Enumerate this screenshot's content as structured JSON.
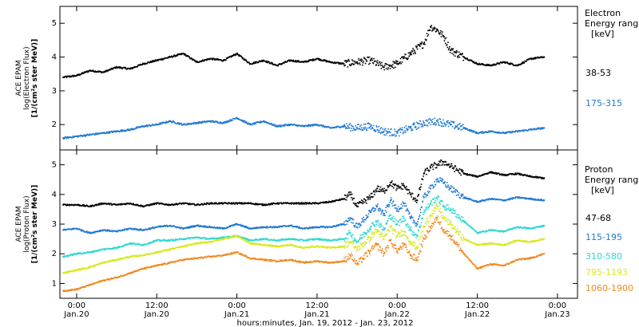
{
  "xlabel": "hours:minutes, Jan. 19, 2012 - Jan. 23, 2012",
  "x_ticks": [
    {
      "hours": 0,
      "time": "0:00",
      "date": "Jan.20"
    },
    {
      "hours": 12,
      "time": "12:00",
      "date": "Jan.20"
    },
    {
      "hours": 24,
      "time": "0:00",
      "date": "Jan.21"
    },
    {
      "hours": 36,
      "time": "12:00",
      "date": "Jan.21"
    },
    {
      "hours": 48,
      "time": "0:00",
      "date": "Jan.22"
    },
    {
      "hours": 60,
      "time": "12:00",
      "date": "Jan.22"
    },
    {
      "hours": 72,
      "time": "0:00",
      "date": "Jan.23"
    }
  ],
  "chart_data": [
    {
      "type": "scatter",
      "ylabel_lines": [
        "ACE EPAM",
        "log(Electron Flux)",
        "[1/(cm²s ster MeV)]"
      ],
      "legend_title": [
        "Electron",
        "Energy ranges",
        "[keV]"
      ],
      "xlim": [
        -2.5,
        75
      ],
      "ylim": [
        1.25,
        5.5
      ],
      "yticks": [
        2,
        3,
        4,
        5
      ],
      "series": [
        {
          "name": "38-53",
          "color": "#000000",
          "x": [
            -2,
            0,
            2,
            4,
            6,
            8,
            10,
            12,
            14,
            16,
            18,
            20,
            22,
            24,
            26,
            28,
            30,
            32,
            34,
            36,
            38,
            40,
            42,
            44,
            46,
            48,
            50,
            52,
            53,
            54,
            55,
            56,
            58,
            60,
            62,
            64,
            66,
            68,
            70
          ],
          "y": [
            3.4,
            3.45,
            3.6,
            3.55,
            3.7,
            3.65,
            3.8,
            3.9,
            4.0,
            4.1,
            3.85,
            3.95,
            3.9,
            4.1,
            3.8,
            3.9,
            3.75,
            3.9,
            3.85,
            3.95,
            3.85,
            3.8,
            3.85,
            3.9,
            3.7,
            3.8,
            4.1,
            4.4,
            4.9,
            4.8,
            4.6,
            4.2,
            4.0,
            3.8,
            3.75,
            3.85,
            3.75,
            3.95,
            4.0
          ]
        },
        {
          "name": "175-315",
          "color": "#1f78d1",
          "x": [
            -2,
            0,
            2,
            4,
            6,
            8,
            10,
            12,
            14,
            16,
            18,
            20,
            22,
            24,
            26,
            28,
            30,
            32,
            34,
            36,
            38,
            40,
            42,
            44,
            46,
            48,
            50,
            52,
            54,
            56,
            58,
            60,
            62,
            64,
            66,
            68,
            70
          ],
          "y": [
            1.6,
            1.65,
            1.7,
            1.75,
            1.8,
            1.85,
            1.95,
            2.0,
            2.1,
            2.0,
            2.05,
            2.1,
            2.05,
            2.2,
            2.0,
            2.1,
            1.95,
            2.0,
            1.95,
            2.0,
            1.9,
            1.95,
            1.9,
            1.95,
            1.8,
            1.75,
            1.9,
            2.05,
            2.1,
            2.0,
            1.9,
            1.75,
            1.8,
            1.75,
            1.8,
            1.85,
            1.9
          ]
        }
      ]
    },
    {
      "type": "scatter",
      "ylabel_lines": [
        "ACE EPAM",
        "log(Proton Flux)",
        "[1/(cm²s ster MeV)]"
      ],
      "legend_title": [
        "Proton",
        "Energy ranges",
        "[keV]"
      ],
      "xlim": [
        -2.5,
        75
      ],
      "ylim": [
        0.5,
        5.5
      ],
      "yticks": [
        1,
        2,
        3,
        4,
        5
      ],
      "series": [
        {
          "name": "47-68",
          "color": "#000000",
          "x": [
            -2,
            0,
            2,
            4,
            6,
            8,
            10,
            12,
            14,
            16,
            18,
            20,
            22,
            24,
            26,
            28,
            30,
            32,
            34,
            36,
            38,
            40,
            41,
            42,
            44,
            45,
            46,
            47,
            48,
            49,
            50,
            51,
            52,
            53,
            54,
            55,
            56,
            58,
            60,
            62,
            64,
            66,
            68,
            70
          ],
          "y": [
            3.65,
            3.65,
            3.6,
            3.7,
            3.65,
            3.7,
            3.6,
            3.7,
            3.65,
            3.7,
            3.65,
            3.7,
            3.7,
            3.7,
            3.7,
            3.65,
            3.7,
            3.7,
            3.7,
            3.7,
            3.75,
            3.85,
            4.0,
            3.6,
            3.9,
            4.2,
            4.1,
            4.4,
            4.2,
            4.3,
            4.0,
            3.8,
            4.7,
            4.9,
            5.0,
            5.1,
            4.95,
            4.7,
            4.6,
            4.75,
            4.65,
            4.7,
            4.6,
            4.55
          ]
        },
        {
          "name": "115-195",
          "color": "#1f78d1",
          "x": [
            -2,
            0,
            2,
            4,
            6,
            8,
            10,
            12,
            14,
            16,
            18,
            20,
            22,
            24,
            26,
            28,
            30,
            32,
            34,
            36,
            38,
            40,
            41,
            42,
            44,
            45,
            46,
            47,
            48,
            49,
            50,
            51,
            52,
            53,
            54,
            55,
            56,
            58,
            60,
            62,
            64,
            66,
            68,
            70
          ],
          "y": [
            2.8,
            2.85,
            2.7,
            2.8,
            2.75,
            2.85,
            2.8,
            2.9,
            2.95,
            2.85,
            2.95,
            2.9,
            2.85,
            3.0,
            2.85,
            2.9,
            2.9,
            2.95,
            2.85,
            2.9,
            2.9,
            3.0,
            3.2,
            2.9,
            3.4,
            3.6,
            3.3,
            3.8,
            3.5,
            3.7,
            3.2,
            3.0,
            3.9,
            4.2,
            4.5,
            4.4,
            4.2,
            3.9,
            3.75,
            3.85,
            3.8,
            3.9,
            3.85,
            3.8
          ]
        },
        {
          "name": "310-580",
          "color": "#2ad9d0",
          "x": [
            -2,
            0,
            2,
            4,
            6,
            8,
            10,
            12,
            14,
            16,
            18,
            20,
            22,
            24,
            26,
            28,
            30,
            32,
            34,
            36,
            38,
            40,
            41,
            42,
            44,
            45,
            46,
            47,
            48,
            49,
            50,
            51,
            52,
            53,
            54,
            55,
            56,
            58,
            60,
            62,
            64,
            66,
            68,
            70
          ],
          "y": [
            1.9,
            2.0,
            2.05,
            2.15,
            2.2,
            2.35,
            2.3,
            2.45,
            2.45,
            2.5,
            2.55,
            2.5,
            2.55,
            2.6,
            2.45,
            2.5,
            2.45,
            2.5,
            2.45,
            2.5,
            2.45,
            2.5,
            2.7,
            2.4,
            2.9,
            3.1,
            2.8,
            3.3,
            3.0,
            3.2,
            2.8,
            2.6,
            3.4,
            3.7,
            3.9,
            3.6,
            3.5,
            3.1,
            2.7,
            2.8,
            2.75,
            2.9,
            2.85,
            2.95
          ]
        },
        {
          "name": "795-1193",
          "color": "#d8e81a",
          "x": [
            -2,
            0,
            2,
            4,
            6,
            8,
            10,
            12,
            14,
            16,
            18,
            20,
            22,
            24,
            26,
            28,
            30,
            32,
            34,
            36,
            38,
            40,
            41,
            42,
            44,
            45,
            46,
            47,
            48,
            49,
            50,
            51,
            52,
            53,
            54,
            55,
            56,
            58,
            60,
            62,
            64,
            66,
            68,
            70
          ],
          "y": [
            1.35,
            1.45,
            1.55,
            1.7,
            1.8,
            1.9,
            1.95,
            2.05,
            2.15,
            2.25,
            2.35,
            2.4,
            2.5,
            2.6,
            2.35,
            2.3,
            2.25,
            2.3,
            2.2,
            2.25,
            2.2,
            2.25,
            2.4,
            2.15,
            2.55,
            2.8,
            2.5,
            2.9,
            2.6,
            2.75,
            2.4,
            2.2,
            2.9,
            3.3,
            3.6,
            3.2,
            3.0,
            2.5,
            2.3,
            2.35,
            2.3,
            2.45,
            2.4,
            2.5
          ]
        },
        {
          "name": "1060-1900",
          "color": "#f0891d",
          "x": [
            -2,
            0,
            2,
            4,
            6,
            8,
            10,
            12,
            14,
            16,
            18,
            20,
            22,
            24,
            26,
            28,
            30,
            32,
            34,
            36,
            38,
            40,
            41,
            42,
            44,
            45,
            46,
            47,
            48,
            49,
            50,
            51,
            52,
            53,
            54,
            55,
            56,
            58,
            60,
            62,
            64,
            66,
            68,
            70
          ],
          "y": [
            0.75,
            0.8,
            0.95,
            1.1,
            1.2,
            1.35,
            1.5,
            1.6,
            1.7,
            1.8,
            1.85,
            1.9,
            1.95,
            2.05,
            1.85,
            1.8,
            1.75,
            1.8,
            1.7,
            1.75,
            1.7,
            1.75,
            1.95,
            1.65,
            2.1,
            2.3,
            2.0,
            2.45,
            2.1,
            2.3,
            1.95,
            1.8,
            2.5,
            2.9,
            3.2,
            2.8,
            2.6,
            2.0,
            1.5,
            1.65,
            1.6,
            1.8,
            1.85,
            2.0
          ]
        }
      ]
    }
  ]
}
